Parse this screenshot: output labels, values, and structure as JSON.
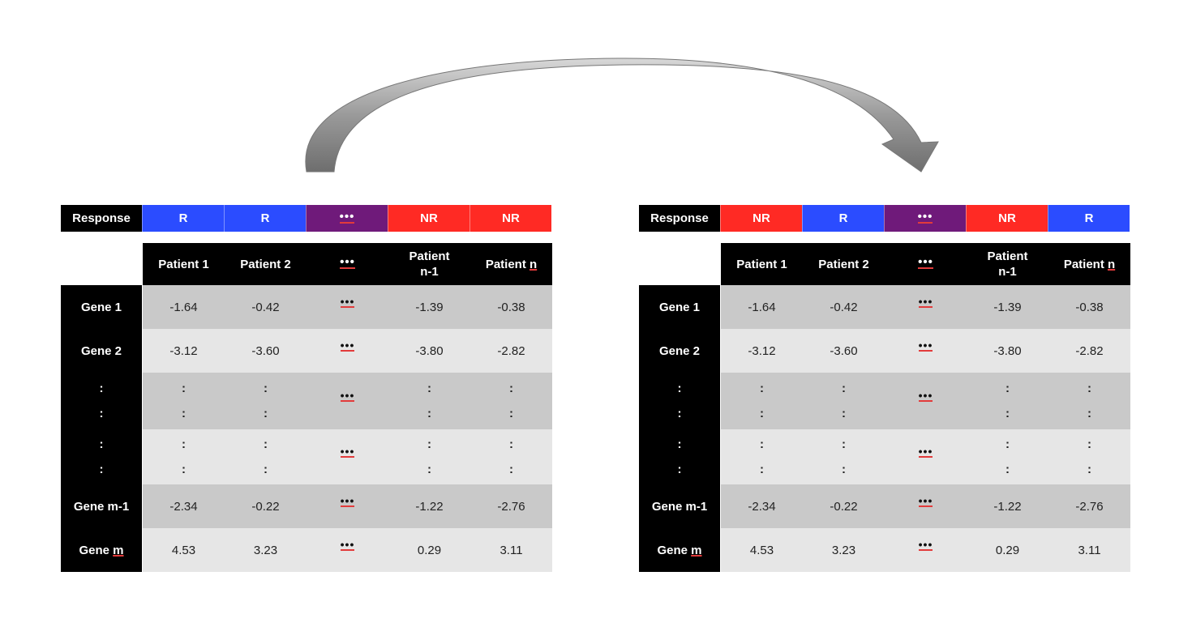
{
  "colors": {
    "R": "#2b4cff",
    "NR": "#ff2a24",
    "dots": "#6f1a7a",
    "rowDark": "#c9c9c9",
    "rowLight": "#e6e6e6"
  },
  "response_label": "Response",
  "headers": [
    "Patient 1",
    "Patient 2",
    "•••",
    "Patient\nn-1",
    "Patient n"
  ],
  "genes": [
    "Gene 1",
    "Gene 2",
    ":",
    ":",
    ":",
    ":",
    "Gene m-1",
    "Gene m"
  ],
  "ellipsis": "•••",
  "colon": ":",
  "rows": [
    [
      "-1.64",
      "-0.42",
      "•••",
      "-1.39",
      "-0.38"
    ],
    [
      "-3.12",
      "-3.60",
      "•••",
      "-3.80",
      "-2.82"
    ],
    [
      ":",
      ":",
      "•••",
      ":",
      ":"
    ],
    [
      ":",
      ":",
      "•••",
      ":",
      ":"
    ],
    [
      "-2.34",
      "-0.22",
      "•••",
      "-1.22",
      "-2.76"
    ],
    [
      "4.53",
      "3.23",
      "•••",
      "0.29",
      "3.11"
    ]
  ],
  "left": {
    "responses": [
      "R",
      "R",
      "•••",
      "NR",
      "NR"
    ]
  },
  "right": {
    "responses": [
      "NR",
      "R",
      "•••",
      "NR",
      "R"
    ]
  }
}
